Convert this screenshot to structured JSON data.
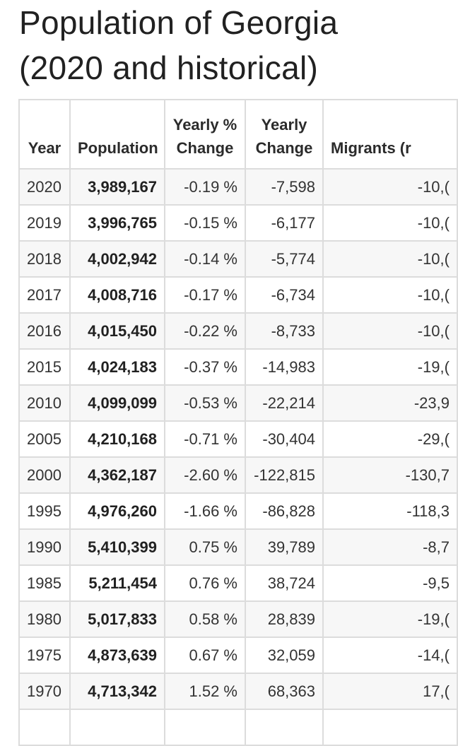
{
  "title": {
    "line1": "Population of Georgia",
    "line2": "(2020 and historical)"
  },
  "table": {
    "headers": {
      "year": "Year",
      "population": "Population",
      "yearly_pct_line1": "Yearly %",
      "yearly_pct_line2": "Change",
      "yearly_change_line1": "Yearly",
      "yearly_change_line2": "Change",
      "migrants": "Migrants (r"
    },
    "rows": [
      {
        "year": "2020",
        "population": "3,989,167",
        "yearly_pct": "-0.19 %",
        "yearly_change": "-7,598",
        "migrants": "-10,("
      },
      {
        "year": "2019",
        "population": "3,996,765",
        "yearly_pct": "-0.15 %",
        "yearly_change": "-6,177",
        "migrants": "-10,("
      },
      {
        "year": "2018",
        "population": "4,002,942",
        "yearly_pct": "-0.14 %",
        "yearly_change": "-5,774",
        "migrants": "-10,("
      },
      {
        "year": "2017",
        "population": "4,008,716",
        "yearly_pct": "-0.17 %",
        "yearly_change": "-6,734",
        "migrants": "-10,("
      },
      {
        "year": "2016",
        "population": "4,015,450",
        "yearly_pct": "-0.22 %",
        "yearly_change": "-8,733",
        "migrants": "-10,("
      },
      {
        "year": "2015",
        "population": "4,024,183",
        "yearly_pct": "-0.37 %",
        "yearly_change": "-14,983",
        "migrants": "-19,("
      },
      {
        "year": "2010",
        "population": "4,099,099",
        "yearly_pct": "-0.53 %",
        "yearly_change": "-22,214",
        "migrants": "-23,9"
      },
      {
        "year": "2005",
        "population": "4,210,168",
        "yearly_pct": "-0.71 %",
        "yearly_change": "-30,404",
        "migrants": "-29,("
      },
      {
        "year": "2000",
        "population": "4,362,187",
        "yearly_pct": "-2.60 %",
        "yearly_change": "-122,815",
        "migrants": "-130,7"
      },
      {
        "year": "1995",
        "population": "4,976,260",
        "yearly_pct": "-1.66 %",
        "yearly_change": "-86,828",
        "migrants": "-118,3"
      },
      {
        "year": "1990",
        "population": "5,410,399",
        "yearly_pct": "0.75 %",
        "yearly_change": "39,789",
        "migrants": "-8,7"
      },
      {
        "year": "1985",
        "population": "5,211,454",
        "yearly_pct": "0.76 %",
        "yearly_change": "38,724",
        "migrants": "-9,5"
      },
      {
        "year": "1980",
        "population": "5,017,833",
        "yearly_pct": "0.58 %",
        "yearly_change": "28,839",
        "migrants": "-19,("
      },
      {
        "year": "1975",
        "population": "4,873,639",
        "yearly_pct": "0.67 %",
        "yearly_change": "32,059",
        "migrants": "-14,("
      },
      {
        "year": "1970",
        "population": "4,713,342",
        "yearly_pct": "1.52 %",
        "yearly_change": "68,363",
        "migrants": "17,("
      },
      {
        "year": "",
        "population": "",
        "yearly_pct": "",
        "yearly_change": "",
        "migrants": ""
      }
    ]
  }
}
